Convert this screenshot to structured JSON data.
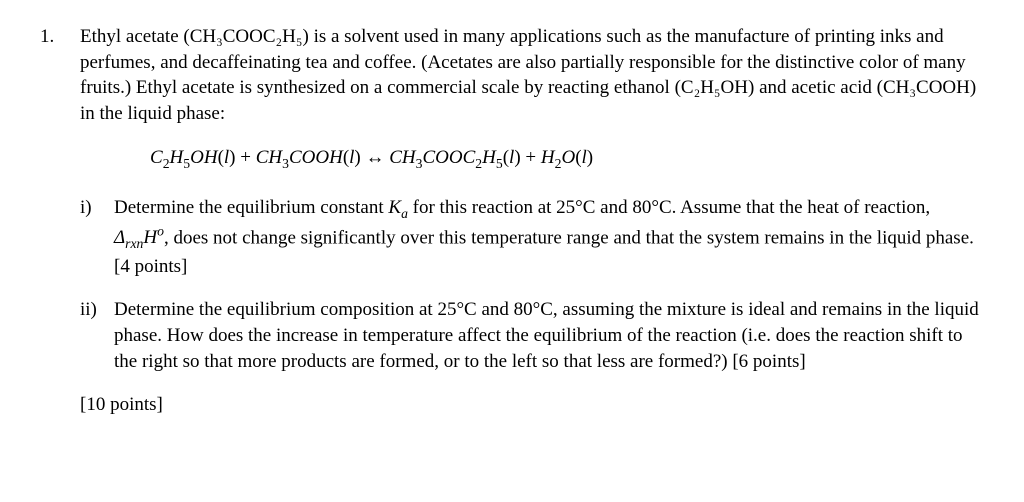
{
  "question": {
    "number": "1.",
    "intro": "Ethyl acetate (CH₃COOC₂H₅) is a solvent used in many applications such as the manufacture of printing inks and perfumes, and decaffeinating tea and coffee. (Acetates are also partially responsible for the distinctive color of many fruits.) Ethyl acetate is synthesized on a commercial scale by reacting ethanol (C₂H₅OH) and acetic acid (CH₃COOH) in the liquid phase:",
    "equation_label": "C₂H₅OH(l) + CH₃COOH(l) ↔ CH₃COOC₂H₅(l) + H₂O(l)",
    "parts": [
      {
        "marker": "i)",
        "text_1": "Determine the equilibrium constant ",
        "k_var": "K",
        "k_sub": "a",
        "text_2": " for this reaction at 25°C and 80°C. Assume that the heat of reaction, ",
        "delta": "Δ",
        "delta_sub": "rxn",
        "h_var": "H",
        "h_sup": "o",
        "text_3": ", does not change significantly over this temperature range and that the system remains in the liquid phase. [4 points]"
      },
      {
        "marker": "ii)",
        "text": "Determine the equilibrium composition at 25°C and 80°C, assuming the mixture is ideal and remains in the liquid phase. How does the increase in temperature affect the equilibrium of the reaction (i.e. does the reaction shift to the right so that more products are formed, or to the left so that less are formed?) [6 points]"
      }
    ],
    "total_points": "[10 points]"
  }
}
